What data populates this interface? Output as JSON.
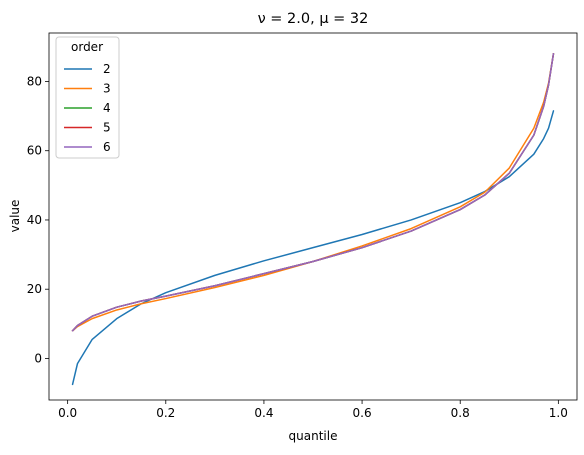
{
  "chart_data": {
    "type": "line",
    "title": "ν = 2.0, μ = 32",
    "xlabel": "quantile",
    "ylabel": "value",
    "xlim": [
      -0.038,
      1.038
    ],
    "ylim": [
      -12,
      94
    ],
    "xticks": [
      0.0,
      0.2,
      0.4,
      0.6,
      0.8,
      1.0
    ],
    "xtick_labels": [
      "0.0",
      "0.2",
      "0.4",
      "0.6",
      "0.8",
      "1.0"
    ],
    "yticks": [
      0,
      20,
      40,
      60,
      80
    ],
    "ytick_labels": [
      "0",
      "20",
      "40",
      "60",
      "80"
    ],
    "grid": false,
    "legend": {
      "title": "order",
      "placement": "top-left"
    },
    "x": [
      0.01,
      0.02,
      0.05,
      0.1,
      0.15,
      0.2,
      0.3,
      0.4,
      0.5,
      0.6,
      0.7,
      0.8,
      0.85,
      0.9,
      0.95,
      0.97,
      0.98,
      0.99
    ],
    "series": [
      {
        "name": "2",
        "color": "#1f77b4",
        "values": [
          -7.5,
          -1.5,
          5.5,
          11.5,
          15.8,
          19.0,
          24.0,
          28.2,
          32.0,
          35.8,
          40.0,
          45.0,
          48.2,
          52.5,
          59.0,
          63.5,
          66.5,
          71.5
        ]
      },
      {
        "name": "3",
        "color": "#ff7f0e",
        "values": [
          8.0,
          9.2,
          11.5,
          14.0,
          15.8,
          17.3,
          20.5,
          24.0,
          28.0,
          32.5,
          37.5,
          43.8,
          48.0,
          55.0,
          66.5,
          74.0,
          79.5,
          88.0
        ]
      },
      {
        "name": "4",
        "color": "#2ca02c",
        "values": [
          8.0,
          9.5,
          12.2,
          14.8,
          16.6,
          18.0,
          21.0,
          24.5,
          28.0,
          32.0,
          36.8,
          43.0,
          47.2,
          53.5,
          64.5,
          72.8,
          79.0,
          88.0
        ]
      },
      {
        "name": "5",
        "color": "#d62728",
        "values": [
          8.0,
          9.5,
          12.2,
          14.8,
          16.6,
          18.0,
          21.0,
          24.5,
          28.0,
          32.0,
          36.8,
          43.0,
          47.2,
          53.5,
          64.5,
          72.8,
          79.0,
          88.0
        ]
      },
      {
        "name": "6",
        "color": "#9467bd",
        "values": [
          8.0,
          9.5,
          12.2,
          14.8,
          16.6,
          18.0,
          21.0,
          24.5,
          28.0,
          32.0,
          36.8,
          43.0,
          47.2,
          53.5,
          64.5,
          72.8,
          79.0,
          88.0
        ]
      }
    ]
  }
}
